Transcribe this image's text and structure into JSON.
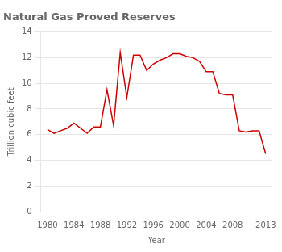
{
  "chart_data": {
    "type": "line",
    "title": "Natural Gas Proved Reserves",
    "xlabel": "Year",
    "ylabel": "Trillion cubic feet",
    "x": [
      1980,
      1981,
      1982,
      1983,
      1984,
      1985,
      1986,
      1987,
      1988,
      1989,
      1990,
      1991,
      1992,
      1993,
      1994,
      1995,
      1996,
      1997,
      1998,
      1999,
      2000,
      2001,
      2002,
      2003,
      2004,
      2005,
      2006,
      2007,
      2008,
      2009,
      2010,
      2011,
      2012,
      2013
    ],
    "values": [
      6.4,
      6.1,
      6.3,
      6.5,
      6.9,
      6.5,
      6.1,
      6.6,
      6.6,
      9.5,
      6.7,
      12.4,
      8.9,
      12.2,
      12.2,
      11.0,
      11.5,
      11.8,
      12.0,
      12.3,
      12.3,
      12.1,
      12.0,
      11.7,
      10.9,
      10.9,
      9.2,
      9.1,
      9.1,
      6.3,
      6.2,
      6.3,
      6.3,
      4.5
    ],
    "color": "#cc0000",
    "xlim": [
      1979,
      2014
    ],
    "xticks": [
      1980,
      1984,
      1988,
      1992,
      1996,
      2000,
      2004,
      2008,
      2013
    ],
    "ylim": [
      0,
      14
    ],
    "yticks": [
      0,
      2,
      4,
      6,
      8,
      10,
      12,
      14
    ],
    "grid": "y"
  }
}
